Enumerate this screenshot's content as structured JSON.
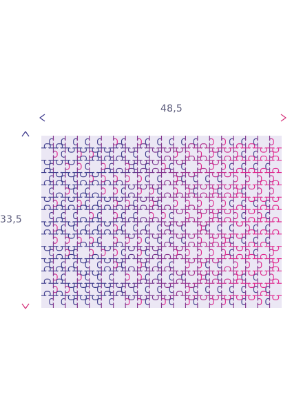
{
  "dimensions": {
    "width_label": "48,5",
    "height_label": "33,5"
  },
  "puzzle": {
    "piece_columns": 20,
    "piece_rows": 14,
    "board_color": "#ebe7f4",
    "line_color_start": "#3e3d8c",
    "line_color_end": "#e0288e"
  },
  "arrows": {
    "color_start": "#3f3b8d",
    "color_end": "#d6357c"
  }
}
